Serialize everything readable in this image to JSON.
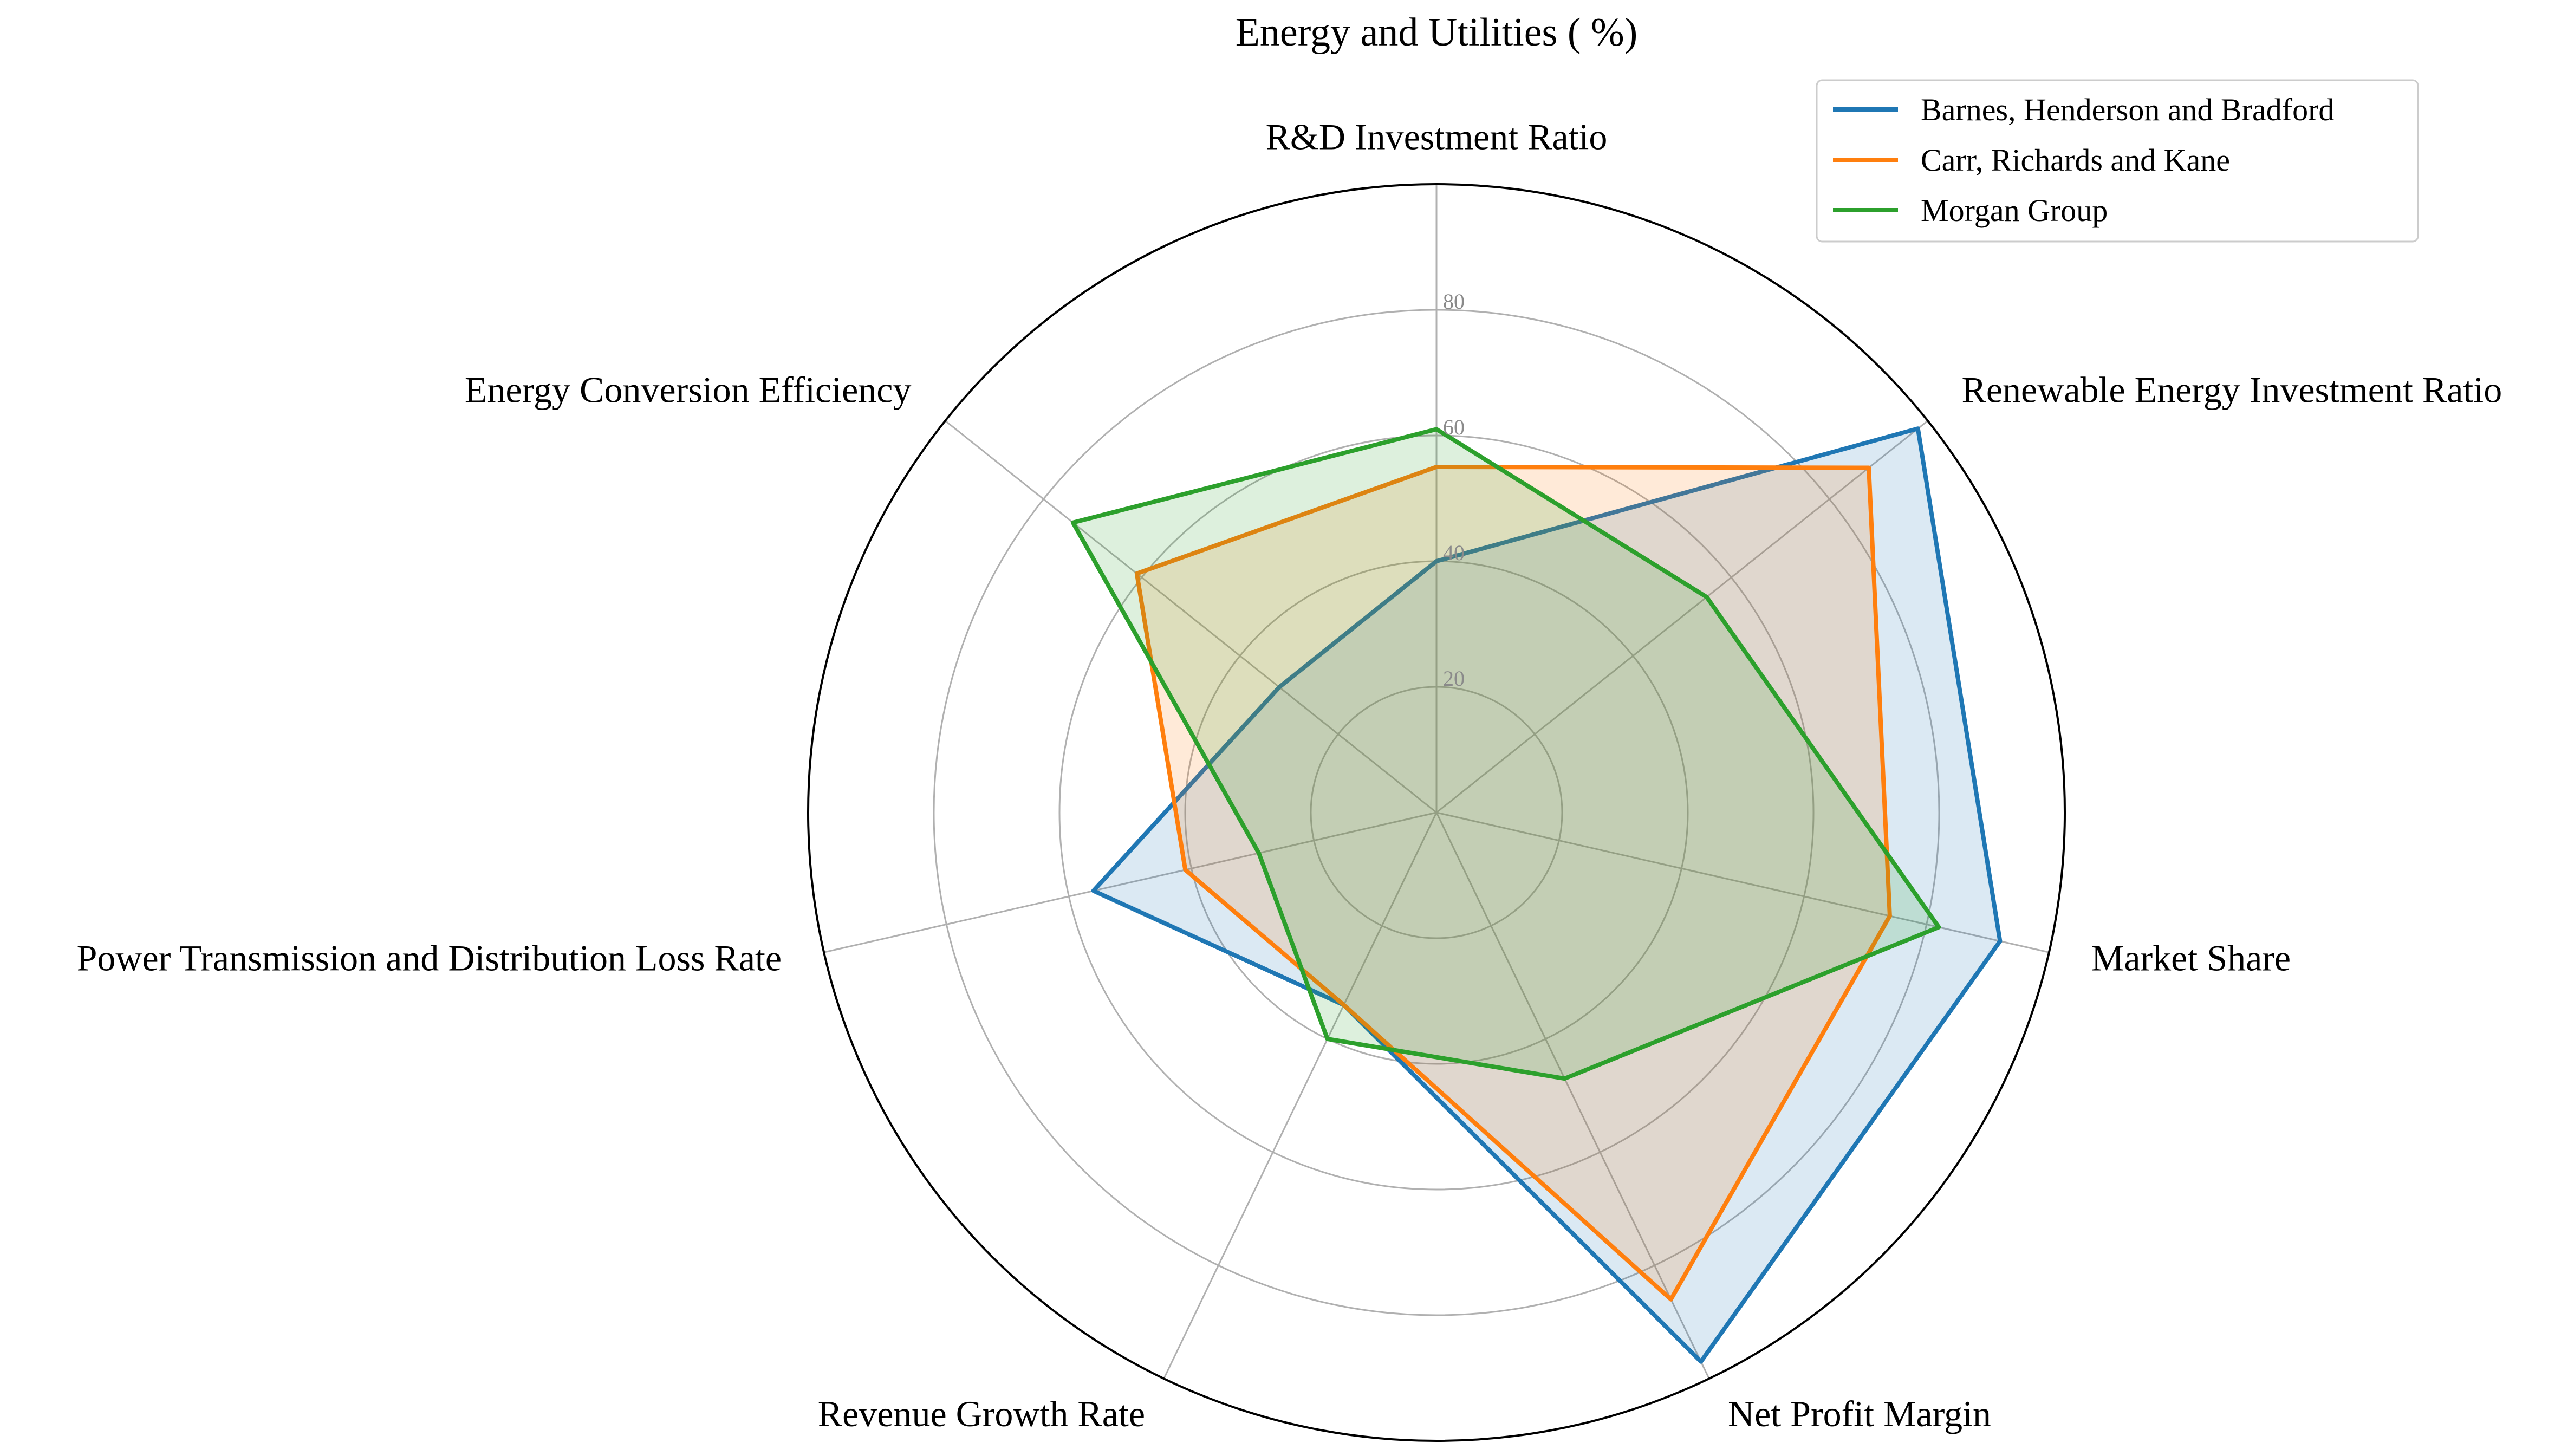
{
  "chart_data": {
    "type": "radar",
    "title": "Energy and Utilities ( %)",
    "axes": [
      "R&D Investment Ratio",
      "Renewable Energy Investment Ratio",
      "Market Share",
      "Net Profit Margin",
      "Revenue Growth Rate",
      "Power Transmission and Distribution Loss Rate",
      "Energy Conversion Efficiency"
    ],
    "rlim": [
      0,
      100
    ],
    "rticks": [
      20,
      40,
      60,
      80
    ],
    "rtick_labels": [
      "20",
      "40",
      "60",
      "80"
    ],
    "grid": true,
    "legend_position": "top-right",
    "series": [
      {
        "name": "Barnes, Henderson and Bradford",
        "color": "#1f77b4",
        "values": [
          40,
          98,
          92,
          97,
          34,
          56,
          32
        ]
      },
      {
        "name": "Carr, Richards and Kane",
        "color": "#ff7f0e",
        "values": [
          55,
          88,
          74,
          86,
          34,
          41,
          61
        ]
      },
      {
        "name": "Morgan Group",
        "color": "#2ca02c",
        "values": [
          61,
          55,
          82,
          47,
          40,
          29,
          74
        ]
      }
    ]
  }
}
